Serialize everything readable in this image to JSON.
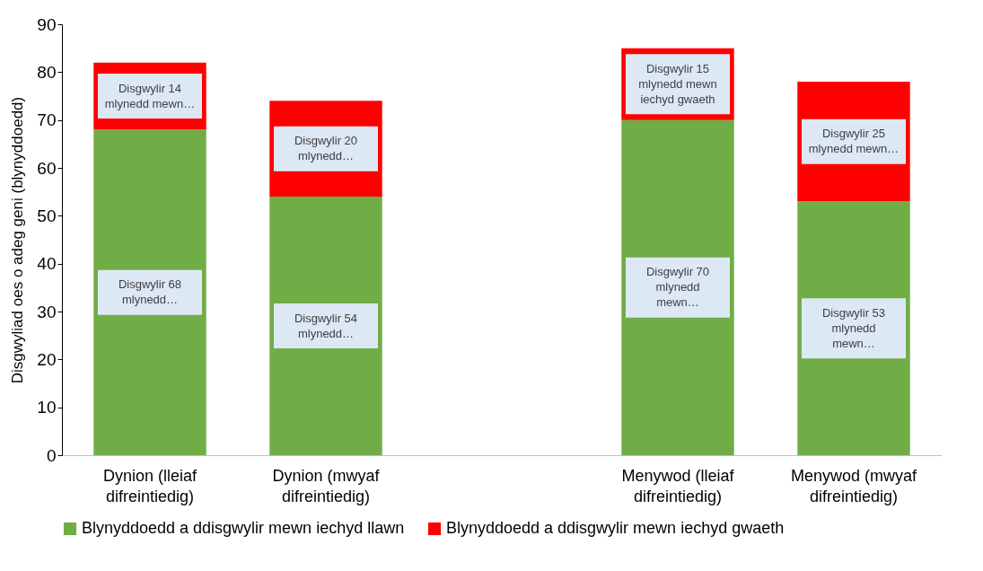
{
  "chart_data": {
    "type": "bar",
    "stacked": true,
    "ylabel": "Disgwyliad oes o adeg geni (blynyddoedd)",
    "categories": [
      "Dynion (lleiaf\ndifreintiedig)",
      "Dynion (mwyaf\ndifreintiedig)",
      null,
      "Menywod (lleiaf\ndifreintiedig)",
      "Menywod (mwyaf\ndifreintiedig)"
    ],
    "series": [
      {
        "name": "Blynyddoedd a ddisgwylir mewn iechyd llawn",
        "color": "#70ad47",
        "values": [
          68,
          54,
          null,
          70,
          53
        ],
        "value_labels": [
          "Disgwylir 68\nmlynedd…",
          "Disgwylir 54\nmlynedd…",
          null,
          "Disgwylir 70\nmlynedd\nmewn…",
          "Disgwylir 53\nmlynedd\nmewn…"
        ]
      },
      {
        "name": "Blynyddoedd a ddisgwylir mewn iechyd gwaeth",
        "color": "#ff0000",
        "values": [
          14,
          20,
          null,
          15,
          25
        ],
        "value_labels": [
          "Disgwylir 14\nmlynedd mewn…",
          "Disgwylir 20\nmlynedd…",
          null,
          "Disgwylir 15\nmlynedd mewn\niechyd gwaeth",
          "Disgwylir 25\nmlynedd mewn…"
        ]
      }
    ],
    "ylim": [
      0,
      90
    ],
    "yticks": [
      0,
      10,
      20,
      30,
      40,
      50,
      60,
      70,
      80,
      90
    ],
    "grid": false,
    "legend": "bottom"
  }
}
